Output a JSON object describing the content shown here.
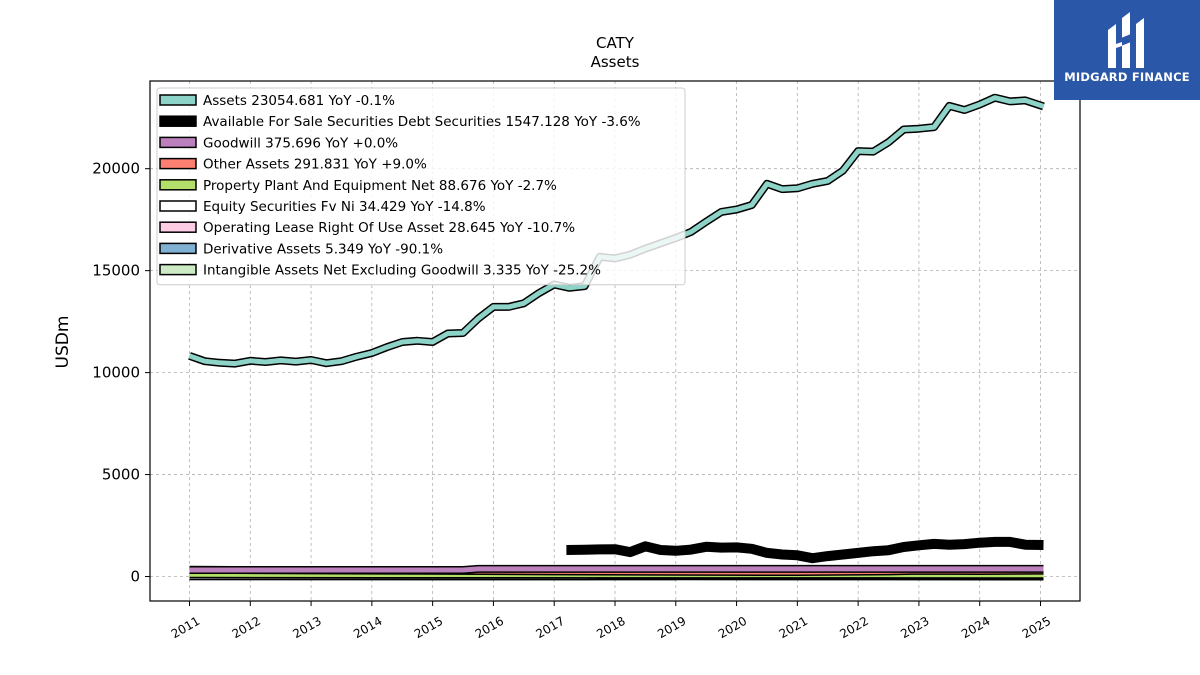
{
  "chart_data": {
    "type": "line",
    "title": "CATY",
    "subtitle": "Assets",
    "ylabel": "USDm",
    "xlabel": "",
    "ylim": [
      -1200,
      24300
    ],
    "xlim": [
      2010.35,
      2025.65
    ],
    "yticks": [
      0,
      5000,
      10000,
      15000,
      20000
    ],
    "xticks": [
      2011,
      2012,
      2013,
      2014,
      2015,
      2016,
      2017,
      2018,
      2019,
      2020,
      2021,
      2022,
      2023,
      2024,
      2025
    ],
    "grid": true,
    "legend_position": "top-left",
    "series": [
      {
        "name": "Assets",
        "legend_label": "Assets  23054.681 YoY -0.1%",
        "color": "#8dd3c7",
        "points": [
          [
            2011.0,
            10820
          ],
          [
            2011.25,
            10560
          ],
          [
            2011.5,
            10480
          ],
          [
            2011.75,
            10440
          ],
          [
            2012.0,
            10580
          ],
          [
            2012.25,
            10520
          ],
          [
            2012.5,
            10600
          ],
          [
            2012.75,
            10540
          ],
          [
            2013.0,
            10620
          ],
          [
            2013.25,
            10460
          ],
          [
            2013.5,
            10560
          ],
          [
            2013.75,
            10780
          ],
          [
            2014.0,
            10960
          ],
          [
            2014.25,
            11250
          ],
          [
            2014.5,
            11500
          ],
          [
            2014.75,
            11560
          ],
          [
            2015.0,
            11500
          ],
          [
            2015.25,
            11920
          ],
          [
            2015.5,
            11940
          ],
          [
            2015.75,
            12650
          ],
          [
            2016.0,
            13220
          ],
          [
            2016.25,
            13220
          ],
          [
            2016.5,
            13400
          ],
          [
            2016.75,
            13900
          ],
          [
            2017.0,
            14320
          ],
          [
            2017.25,
            14160
          ],
          [
            2017.5,
            14240
          ],
          [
            2017.75,
            15680
          ],
          [
            2018.0,
            15600
          ],
          [
            2018.25,
            15780
          ],
          [
            2018.5,
            16080
          ],
          [
            2018.75,
            16340
          ],
          [
            2019.0,
            16600
          ],
          [
            2019.25,
            16900
          ],
          [
            2019.5,
            17400
          ],
          [
            2019.75,
            17880
          ],
          [
            2020.0,
            18000
          ],
          [
            2020.25,
            18220
          ],
          [
            2020.5,
            19260
          ],
          [
            2020.75,
            19000
          ],
          [
            2021.0,
            19040
          ],
          [
            2021.25,
            19260
          ],
          [
            2021.5,
            19400
          ],
          [
            2021.75,
            19900
          ],
          [
            2022.0,
            20860
          ],
          [
            2022.25,
            20840
          ],
          [
            2022.5,
            21300
          ],
          [
            2022.75,
            21920
          ],
          [
            2023.0,
            21960
          ],
          [
            2023.25,
            22040
          ],
          [
            2023.5,
            23080
          ],
          [
            2023.75,
            22880
          ],
          [
            2024.0,
            23150
          ],
          [
            2024.25,
            23480
          ],
          [
            2024.5,
            23300
          ],
          [
            2024.75,
            23350
          ],
          [
            2025.05,
            23055
          ]
        ]
      },
      {
        "name": "Available For Sale Securities Debt Securities",
        "legend_label": "Available For Sale Securities Debt Securities  1547.128 YoY -3.6%",
        "color": "#000000",
        "points": [
          [
            2017.2,
            1300
          ],
          [
            2017.5,
            1310
          ],
          [
            2017.75,
            1330
          ],
          [
            2018.0,
            1340
          ],
          [
            2018.25,
            1200
          ],
          [
            2018.5,
            1480
          ],
          [
            2018.75,
            1300
          ],
          [
            2019.0,
            1260
          ],
          [
            2019.25,
            1320
          ],
          [
            2019.5,
            1460
          ],
          [
            2019.75,
            1420
          ],
          [
            2020.0,
            1430
          ],
          [
            2020.25,
            1360
          ],
          [
            2020.5,
            1160
          ],
          [
            2020.75,
            1080
          ],
          [
            2021.0,
            1040
          ],
          [
            2021.25,
            900
          ],
          [
            2021.5,
            1000
          ],
          [
            2021.75,
            1080
          ],
          [
            2022.0,
            1160
          ],
          [
            2022.25,
            1240
          ],
          [
            2022.5,
            1290
          ],
          [
            2022.75,
            1450
          ],
          [
            2023.0,
            1530
          ],
          [
            2023.25,
            1600
          ],
          [
            2023.5,
            1560
          ],
          [
            2023.75,
            1590
          ],
          [
            2024.0,
            1660
          ],
          [
            2024.25,
            1700
          ],
          [
            2024.5,
            1700
          ],
          [
            2024.75,
            1560
          ],
          [
            2025.05,
            1547
          ]
        ]
      },
      {
        "name": "Goodwill",
        "legend_label": "Goodwill  375.696 YoY +0.0%",
        "color": "#bc80bd",
        "points": [
          [
            2011.0,
            320
          ],
          [
            2015.5,
            320
          ],
          [
            2015.75,
            376
          ],
          [
            2025.05,
            376
          ]
        ]
      },
      {
        "name": "Other Assets",
        "legend_label": "Other Assets  291.831 YoY +9.0%",
        "color": "#fb8072",
        "points": [
          [
            2011.0,
            330
          ],
          [
            2013.0,
            300
          ],
          [
            2015.0,
            280
          ],
          [
            2017.0,
            250
          ],
          [
            2019.0,
            230
          ],
          [
            2021.0,
            220
          ],
          [
            2022.5,
            250
          ],
          [
            2023.0,
            280
          ],
          [
            2024.0,
            270
          ],
          [
            2025.05,
            292
          ]
        ]
      },
      {
        "name": "Property Plant And Equipment Net",
        "legend_label": "Property Plant And Equipment Net  88.676 YoY -2.7%",
        "color": "#b3de69",
        "points": [
          [
            2011.0,
            110
          ],
          [
            2015.0,
            100
          ],
          [
            2020.0,
            95
          ],
          [
            2025.05,
            89
          ]
        ]
      },
      {
        "name": "Equity Securities Fv Ni",
        "legend_label": "Equity Securities Fv Ni  34.429 YoY -14.8%",
        "color": "#ffffff",
        "points": [
          [
            2011.0,
            20
          ],
          [
            2017.5,
            20
          ],
          [
            2018.0,
            30
          ],
          [
            2025.05,
            34
          ]
        ]
      },
      {
        "name": "Operating Lease Right Of Use Asset",
        "legend_label": "Operating Lease Right Of Use Asset  28.645 YoY -10.7%",
        "color": "#fccde5",
        "points": [
          [
            2011.0,
            15
          ],
          [
            2019.0,
            15
          ],
          [
            2019.25,
            100
          ],
          [
            2021.0,
            90
          ],
          [
            2025.05,
            29
          ]
        ]
      },
      {
        "name": "Derivative Assets",
        "legend_label": "Derivative Assets  5.349 YoY -90.1%",
        "color": "#80b1d3",
        "points": [
          [
            2011.0,
            40
          ],
          [
            2015.0,
            30
          ],
          [
            2020.0,
            60
          ],
          [
            2023.0,
            70
          ],
          [
            2025.05,
            5
          ]
        ]
      },
      {
        "name": "Intangible Assets Net Excluding Goodwill",
        "legend_label": "Intangible Assets Net Excluding Goodwill  3.335 YoY -25.2%",
        "color": "#ccebc5",
        "points": [
          [
            2011.0,
            25
          ],
          [
            2015.0,
            15
          ],
          [
            2019.0,
            10
          ],
          [
            2025.05,
            3
          ]
        ]
      }
    ]
  },
  "logo": {
    "text": "MIDGARD FINANCE"
  }
}
